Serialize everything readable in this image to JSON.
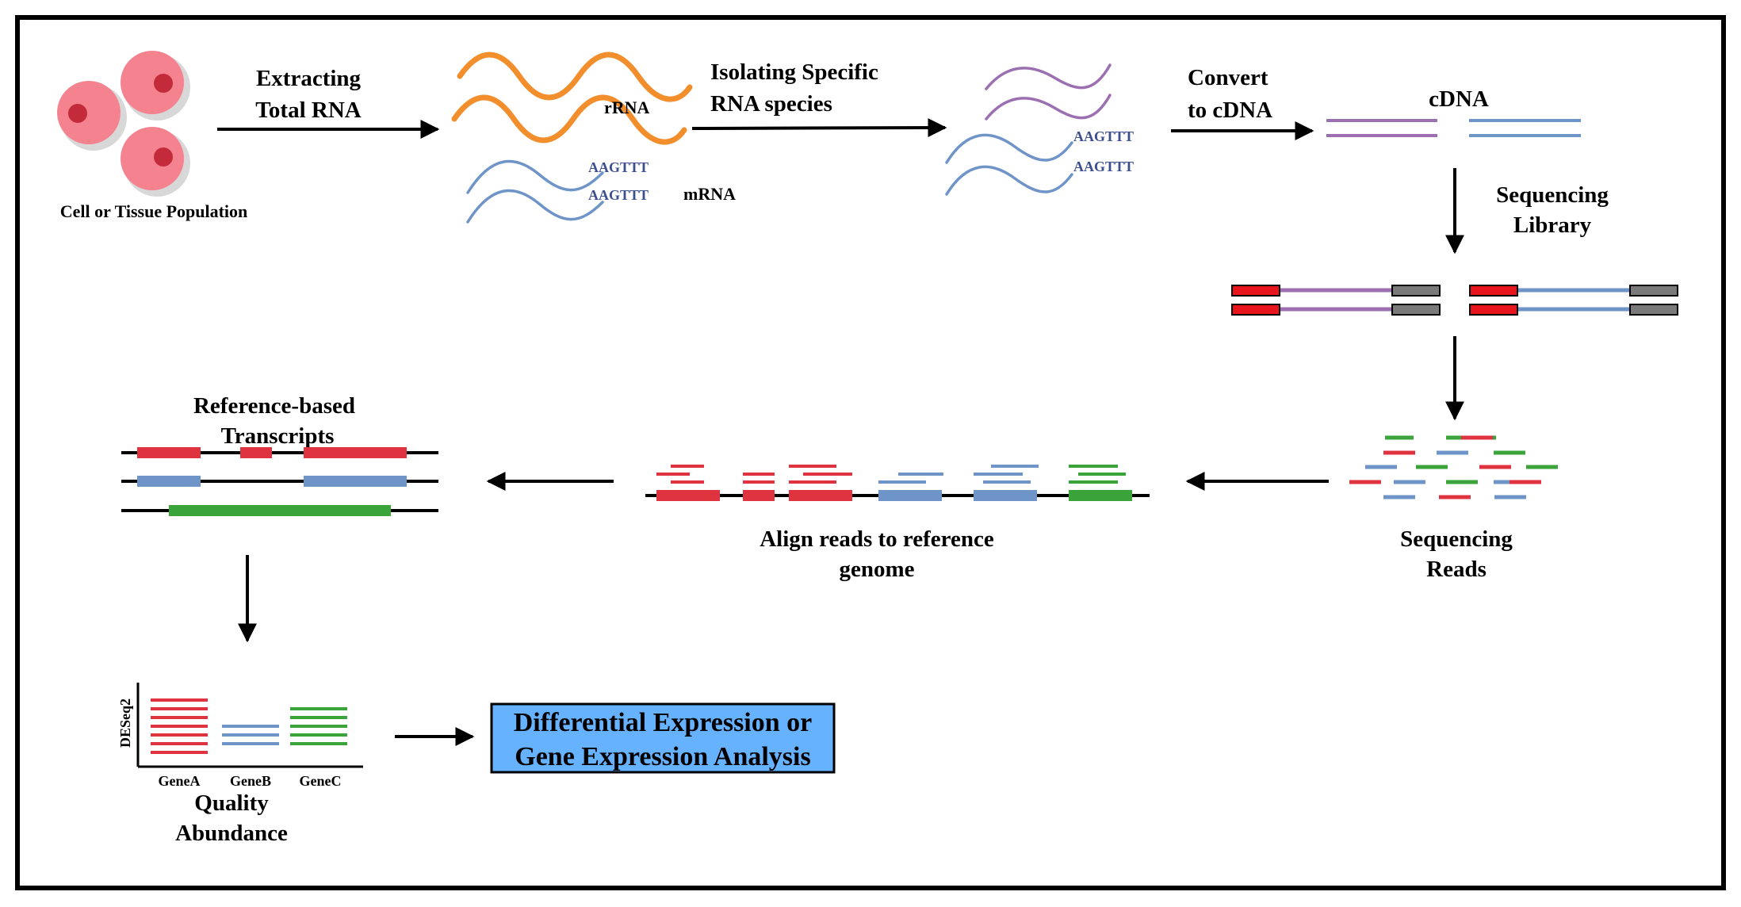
{
  "labels": {
    "cell_population": "Cell or Tissue Population",
    "extract_1": "Extracting",
    "extract_2": "Total RNA",
    "rrna": "rRNA",
    "mrna": "mRNA",
    "polya_tag": "AAGTTT",
    "isolate_1": "Isolating  Specific",
    "isolate_2": "RNA species",
    "convert_1": "Convert",
    "convert_2": "to cDNA",
    "cdna": "cDNA",
    "library_1": "Sequencing",
    "library_2": "Library",
    "reads_1": "Sequencing",
    "reads_2": "Reads",
    "align_1": "Align reads to reference",
    "align_2": "genome",
    "transcripts_1": "Reference-based",
    "transcripts_2": "Transcripts",
    "y_axis": "DESeq2",
    "gene_a": "GeneA",
    "gene_b": "GeneB",
    "gene_c": "GeneC",
    "quality_1": "Quality",
    "quality_2": "Abundance",
    "final_1": "Differential Expression or",
    "final_2": "Gene Expression Analysis"
  },
  "colors": {
    "cell": "#f4828f",
    "nucleus": "#c42b3a",
    "rrna": "#f28e2b",
    "mrna": "#6f94c8",
    "purple": "#9b6fb0",
    "red": "#e03340",
    "green": "#3aa33a",
    "adapter_red": "#e8151c",
    "adapter_gray": "#7a7a7a",
    "final_box": "#66b2ff"
  }
}
